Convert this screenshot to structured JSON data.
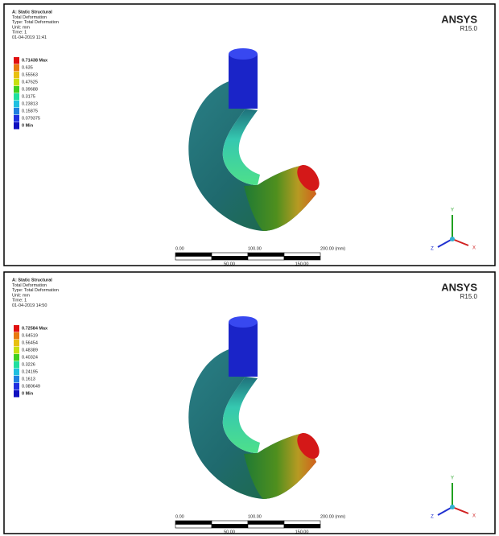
{
  "panels": [
    {
      "header": [
        "A: Static Structural",
        "Total Deformation",
        "Type: Total Deformation",
        "Unit: mm",
        "Time: 1",
        "01-04-2019 11:41"
      ],
      "legend": [
        "0.71438 Max",
        "0.635",
        "0.55563",
        "0.47625",
        "0.39688",
        "0.3175",
        "0.23813",
        "0.15875",
        "0.079375",
        "0 Min"
      ],
      "logo": "ANSYS",
      "version": "R15.0",
      "scale": {
        "top": [
          "0.00",
          "100.00",
          "200.00 (mm)"
        ],
        "bottom": [
          "50.00",
          "150.00"
        ]
      },
      "triad": [
        "Y",
        "Z",
        "X"
      ]
    },
    {
      "header": [
        "A: Static Structural",
        "Total Deformation",
        "Type: Total Deformation",
        "Unit: mm",
        "Time: 1",
        "01-04-2019 14:50"
      ],
      "legend": [
        "0.72584 Max",
        "0.64519",
        "0.56454",
        "0.48389",
        "0.40324",
        "0.3226",
        "0.24195",
        "0.1613",
        "0.080649",
        "0 Min"
      ],
      "logo": "ANSYS",
      "version": "R15.0",
      "scale": {
        "top": [
          "0.00",
          "100.00",
          "200.00 (mm)"
        ],
        "bottom": [
          "50.00",
          "150.00"
        ]
      },
      "triad": [
        "Y",
        "Z",
        "X"
      ]
    }
  ]
}
